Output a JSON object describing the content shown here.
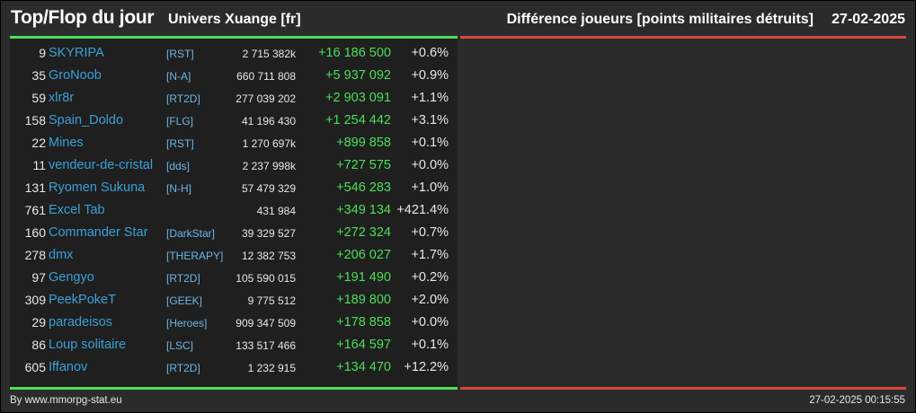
{
  "header": {
    "title": "Top/Flop du jour",
    "universe": "Univers Xuange [fr]",
    "metric": "Différence joueurs [points militaires détruits]",
    "date": "27-02-2025"
  },
  "colors": {
    "top_bar": "#4cdf5a",
    "flop_bar": "#d9463a",
    "player_name": "#3aa0d8",
    "positive_diff": "#4cdf5a"
  },
  "top_list": [
    {
      "rank": "9",
      "name": "SKYRIPA",
      "alliance": "[RST]",
      "points": "2 715 382k",
      "diff": "+16 186 500",
      "pct": "+0.6%"
    },
    {
      "rank": "35",
      "name": "GroNoob",
      "alliance": "[N-A]",
      "points": "660 711 808",
      "diff": "+5 937 092",
      "pct": "+0.9%"
    },
    {
      "rank": "59",
      "name": "xlr8r",
      "alliance": "[RT2D]",
      "points": "277 039 202",
      "diff": "+2 903 091",
      "pct": "+1.1%"
    },
    {
      "rank": "158",
      "name": "Spain_Doldo",
      "alliance": "[FLG]",
      "points": "41 196 430",
      "diff": "+1 254 442",
      "pct": "+3.1%"
    },
    {
      "rank": "22",
      "name": "Mines",
      "alliance": "[RST]",
      "points": "1 270 697k",
      "diff": "+899 858",
      "pct": "+0.1%"
    },
    {
      "rank": "11",
      "name": "vendeur-de-cristal",
      "alliance": "[dds]",
      "points": "2 237 998k",
      "diff": "+727 575",
      "pct": "+0.0%"
    },
    {
      "rank": "131",
      "name": "Ryomen Sukuna",
      "alliance": "[N-H]",
      "points": "57 479 329",
      "diff": "+546 283",
      "pct": "+1.0%"
    },
    {
      "rank": "761",
      "name": "Excel Tab",
      "alliance": "",
      "points": "431 984",
      "diff": "+349 134",
      "pct": "+421.4%"
    },
    {
      "rank": "160",
      "name": "Commander Star",
      "alliance": "[DarkStar]",
      "points": "39 329 527",
      "diff": "+272 324",
      "pct": "+0.7%"
    },
    {
      "rank": "278",
      "name": "dmx",
      "alliance": "[THERAPY]",
      "points": "12 382 753",
      "diff": "+206 027",
      "pct": "+1.7%"
    },
    {
      "rank": "97",
      "name": "Gengyo",
      "alliance": "[RT2D]",
      "points": "105 590 015",
      "diff": "+191 490",
      "pct": "+0.2%"
    },
    {
      "rank": "309",
      "name": "PeekPokeT",
      "alliance": "[GEEK]",
      "points": "9 775 512",
      "diff": "+189 800",
      "pct": "+2.0%"
    },
    {
      "rank": "29",
      "name": "paradeisos",
      "alliance": "[Heroes]",
      "points": "909 347 509",
      "diff": "+178 858",
      "pct": "+0.0%"
    },
    {
      "rank": "86",
      "name": "Loup solitaire",
      "alliance": "[LSC]",
      "points": "133 517 466",
      "diff": "+164 597",
      "pct": "+0.1%"
    },
    {
      "rank": "605",
      "name": "Iffanov",
      "alliance": "[RT2D]",
      "points": "1 232 915",
      "diff": "+134 470",
      "pct": "+12.2%"
    }
  ],
  "footer": {
    "credit": "By www.mmorpg-stat.eu",
    "timestamp": "27-02-2025 00:15:55"
  }
}
